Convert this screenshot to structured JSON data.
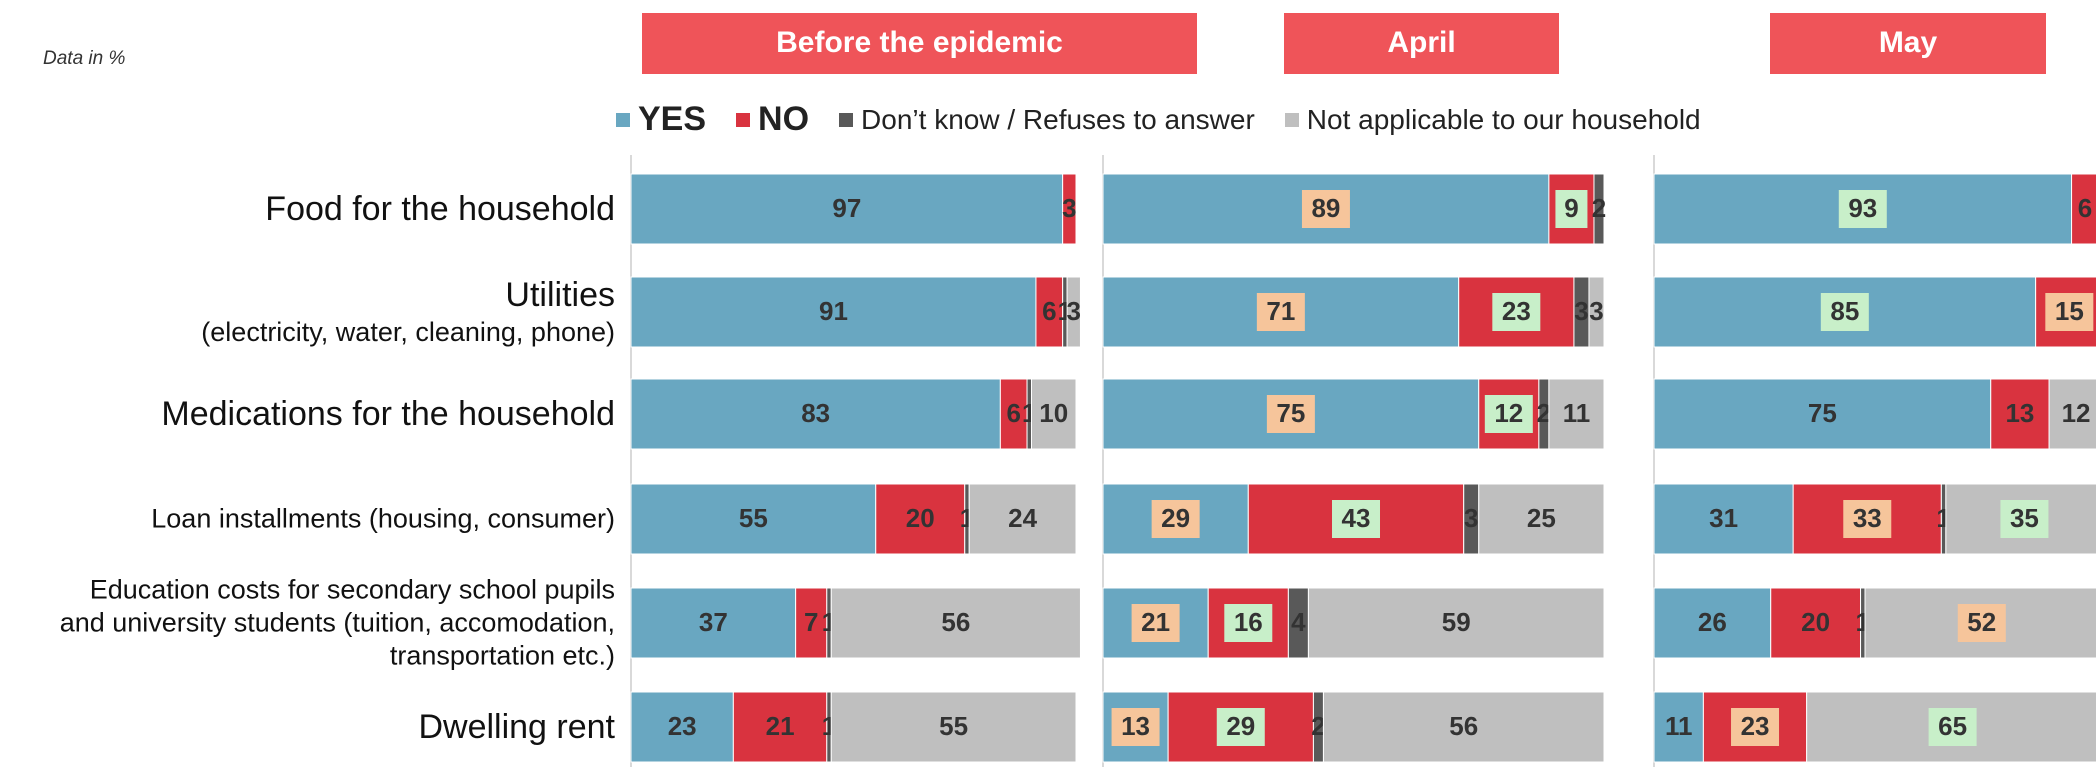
{
  "chart_data": {
    "type": "bar",
    "orientation": "horizontal",
    "stacked": true,
    "note": "Data in %",
    "categories": [
      "Food for the household",
      "Utilities",
      "Medications for the household",
      "Loan installments (housing, consumer)",
      "Education costs for secondary school pupils\nand university students (tuition, accomodation,\ntransportation etc.)",
      "Dwelling rent"
    ],
    "category_details": [
      null,
      "(electricity, water, cleaning, phone)",
      null,
      null,
      null,
      null
    ],
    "legend": [
      {
        "name": "YES",
        "color": "#69a7c1"
      },
      {
        "name": "NO",
        "color": "#d9333f"
      },
      {
        "name": "Don’t know / Refuses to answer",
        "color": "#595959"
      },
      {
        "name": "Not applicable to our household",
        "color": "#bfbfbf"
      }
    ],
    "title_color": "#ef5459",
    "panels": [
      {
        "title": "Before the epidemic",
        "series": [
          {
            "values": [
              97,
              91,
              83,
              55,
              37,
              23
            ],
            "label_colors": [
              null,
              null,
              null,
              null,
              null,
              null
            ]
          },
          {
            "values": [
              3,
              6,
              6,
              20,
              7,
              21
            ],
            "label_colors": [
              null,
              null,
              null,
              null,
              null,
              null
            ]
          },
          {
            "values": [
              null,
              1,
              1,
              1,
              1,
              1
            ],
            "label_colors": [
              null,
              null,
              null,
              null,
              null,
              null
            ]
          },
          {
            "values": [
              null,
              3,
              10,
              24,
              56,
              55
            ],
            "label_colors": [
              null,
              null,
              null,
              null,
              null,
              null
            ]
          }
        ]
      },
      {
        "title": "April",
        "series": [
          {
            "values": [
              89,
              71,
              75,
              29,
              21,
              13
            ],
            "label_colors": [
              "#f6c59b",
              "#f6c59b",
              "#f6c59b",
              "#f6c59b",
              "#f6c59b",
              "#f6c59b"
            ]
          },
          {
            "values": [
              9,
              23,
              12,
              43,
              16,
              29
            ],
            "label_colors": [
              "#c8efc9",
              "#c8efc9",
              "#c8efc9",
              "#c8efc9",
              "#c8efc9",
              "#c8efc9"
            ]
          },
          {
            "values": [
              2,
              3,
              2,
              3,
              4,
              2
            ],
            "label_colors": [
              null,
              null,
              null,
              null,
              null,
              null
            ]
          },
          {
            "values": [
              null,
              3,
              11,
              25,
              59,
              56
            ],
            "label_colors": [
              null,
              null,
              null,
              null,
              null,
              null
            ]
          }
        ]
      },
      {
        "title": "May",
        "series": [
          {
            "values": [
              93,
              85,
              75,
              31,
              26,
              11
            ],
            "label_colors": [
              "#c8efc9",
              "#c8efc9",
              null,
              null,
              null,
              null
            ]
          },
          {
            "values": [
              6,
              15,
              13,
              33,
              20,
              23
            ],
            "label_colors": [
              null,
              "#f6c59b",
              null,
              "#f6c59b",
              null,
              "#f6c59b"
            ]
          },
          {
            "values": [
              null,
              null,
              null,
              1,
              1,
              null
            ],
            "label_colors": [
              null,
              null,
              null,
              null,
              null,
              null
            ]
          },
          {
            "values": [
              null,
              null,
              12,
              35,
              52,
              65
            ],
            "label_colors": [
              null,
              null,
              null,
              "#c8efc9",
              "#f6c59b",
              "#c8efc9"
            ]
          }
        ]
      }
    ]
  }
}
